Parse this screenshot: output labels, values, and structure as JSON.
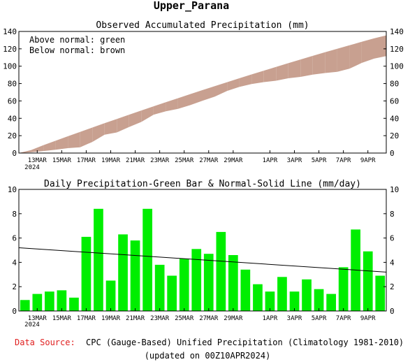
{
  "title": "Upper_Parana",
  "footer": {
    "source_label": "Data Source:",
    "source_text": "CPC (Gauge-Based) Unified Precipitation (Climatology 1981-2010)",
    "updated": "(updated on 00Z10APR2024)"
  },
  "colors": {
    "band": "#c8a090",
    "bars": "#00ee00",
    "normal_line": "#000000",
    "source_label": "#e02020"
  },
  "chart_data": [
    {
      "type": "area",
      "title": "Observed Accumulated Precipitation (mm)",
      "annotations": [
        "Above normal: green",
        "Below normal: brown"
      ],
      "ylim": [
        0,
        140
      ],
      "yticks": [
        0,
        20,
        40,
        60,
        80,
        100,
        120,
        140
      ],
      "xlim": [
        1,
        30
      ],
      "x_ticks": [
        {
          "day": 2,
          "label": "13MAR"
        },
        {
          "day": 4,
          "label": "15MAR"
        },
        {
          "day": 6,
          "label": "17MAR"
        },
        {
          "day": 8,
          "label": "19MAR"
        },
        {
          "day": 10,
          "label": "21MAR"
        },
        {
          "day": 12,
          "label": "23MAR"
        },
        {
          "day": 14,
          "label": "25MAR"
        },
        {
          "day": 16,
          "label": "27MAR"
        },
        {
          "day": 18,
          "label": "29MAR"
        },
        {
          "day": 21,
          "label": "1APR"
        },
        {
          "day": 23,
          "label": "3APR"
        },
        {
          "day": 25,
          "label": "5APR"
        },
        {
          "day": 27,
          "label": "7APR"
        },
        {
          "day": 29,
          "label": "9APR"
        }
      ],
      "year_label": "2024",
      "series": [
        {
          "name": "Normal accumulated",
          "values": [
            3.5,
            9.0,
            14.2,
            19.3,
            24.4,
            29.4,
            34.4,
            39.3,
            44.2,
            49.0,
            53.8,
            58.5,
            63.2,
            67.9,
            72.5,
            77.1,
            81.6,
            86.1,
            90.5,
            94.9,
            99.2,
            103.5,
            107.7,
            111.9,
            116.0,
            120.1,
            124.1,
            128.1,
            132.0,
            135.5
          ]
        },
        {
          "name": "Observed accumulated",
          "values": [
            0.9,
            2.3,
            3.9,
            5.6,
            6.7,
            12.8,
            21.2,
            23.7,
            30.0,
            35.8,
            44.2,
            48.0,
            50.9,
            55.2,
            60.3,
            65.0,
            71.5,
            76.1,
            79.5,
            81.7,
            83.3,
            86.1,
            87.7,
            90.3,
            92.1,
            93.5,
            97.1,
            103.8,
            108.7,
            111.6
          ]
        }
      ]
    },
    {
      "type": "bar",
      "title": "Daily Precipitation-Green Bar & Normal-Solid Line (mm/day)",
      "ylim": [
        0,
        10
      ],
      "yticks": [
        0,
        2,
        4,
        6,
        8,
        10
      ],
      "xlim": [
        1,
        30
      ],
      "x_ticks": [
        {
          "day": 2,
          "label": "13MAR"
        },
        {
          "day": 4,
          "label": "15MAR"
        },
        {
          "day": 6,
          "label": "17MAR"
        },
        {
          "day": 8,
          "label": "19MAR"
        },
        {
          "day": 10,
          "label": "21MAR"
        },
        {
          "day": 12,
          "label": "23MAR"
        },
        {
          "day": 14,
          "label": "25MAR"
        },
        {
          "day": 16,
          "label": "27MAR"
        },
        {
          "day": 18,
          "label": "29MAR"
        },
        {
          "day": 21,
          "label": "1APR"
        },
        {
          "day": 23,
          "label": "3APR"
        },
        {
          "day": 25,
          "label": "5APR"
        },
        {
          "day": 27,
          "label": "7APR"
        },
        {
          "day": 29,
          "label": "9APR"
        }
      ],
      "year_label": "2024",
      "series": [
        {
          "name": "Daily precipitation",
          "values": [
            0.9,
            1.4,
            1.6,
            1.7,
            1.1,
            6.1,
            8.4,
            2.5,
            6.3,
            5.8,
            8.4,
            3.8,
            2.9,
            4.3,
            5.1,
            4.7,
            6.5,
            4.6,
            3.4,
            2.2,
            1.6,
            2.8,
            1.6,
            2.6,
            1.8,
            1.4,
            3.6,
            6.7,
            4.9,
            2.9
          ]
        },
        {
          "name": "Normal",
          "line": [
            5.2,
            3.2
          ]
        }
      ]
    }
  ]
}
